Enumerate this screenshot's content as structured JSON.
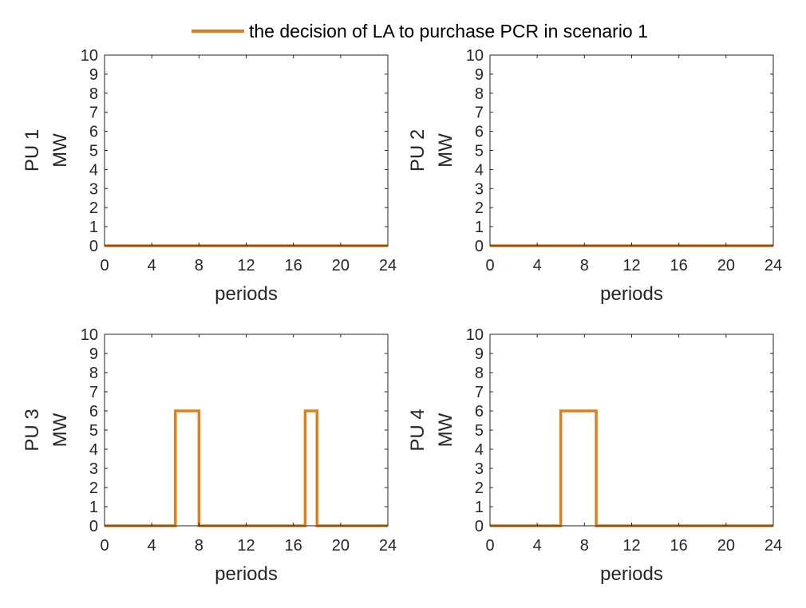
{
  "legend": {
    "label": "the decision of LA to purchase PCR in scenario 1",
    "color": "#E0801A"
  },
  "chart_data": [
    {
      "type": "line",
      "step": true,
      "ylabel_1": "PU 1",
      "ylabel_2": "MW",
      "xlabel": "periods",
      "xlim": [
        0,
        24
      ],
      "ylim": [
        0,
        10
      ],
      "xticks": [
        "0",
        "4",
        "8",
        "12",
        "16",
        "20",
        "24"
      ],
      "yticks": [
        "0",
        "1",
        "2",
        "3",
        "4",
        "5",
        "6",
        "7",
        "8",
        "9",
        "10"
      ],
      "series": [
        {
          "name": "the decision of LA to purchase PCR in scenario 1",
          "x": [
            0,
            24
          ],
          "y": [
            0,
            0
          ]
        }
      ]
    },
    {
      "type": "line",
      "step": true,
      "ylabel_1": "PU 2",
      "ylabel_2": "MW",
      "xlabel": "periods",
      "xlim": [
        0,
        24
      ],
      "ylim": [
        0,
        10
      ],
      "xticks": [
        "0",
        "4",
        "8",
        "12",
        "16",
        "20",
        "24"
      ],
      "yticks": [
        "0",
        "1",
        "2",
        "3",
        "4",
        "5",
        "6",
        "7",
        "8",
        "9",
        "10"
      ],
      "series": [
        {
          "name": "the decision of LA to purchase PCR in scenario 1",
          "x": [
            0,
            24
          ],
          "y": [
            0,
            0
          ]
        }
      ]
    },
    {
      "type": "line",
      "step": true,
      "ylabel_1": "PU 3",
      "ylabel_2": "MW",
      "xlabel": "periods",
      "xlim": [
        0,
        24
      ],
      "ylim": [
        0,
        10
      ],
      "xticks": [
        "0",
        "4",
        "8",
        "12",
        "16",
        "20",
        "24"
      ],
      "yticks": [
        "0",
        "1",
        "2",
        "3",
        "4",
        "5",
        "6",
        "7",
        "8",
        "9",
        "10"
      ],
      "series": [
        {
          "name": "the decision of LA to purchase PCR in scenario 1",
          "x": [
            0,
            6,
            6,
            8,
            8,
            17,
            17,
            18,
            18,
            24
          ],
          "y": [
            0,
            0,
            6,
            6,
            0,
            0,
            6,
            6,
            0,
            0
          ]
        }
      ]
    },
    {
      "type": "line",
      "step": true,
      "ylabel_1": "PU 4",
      "ylabel_2": "MW",
      "xlabel": "periods",
      "xlim": [
        0,
        24
      ],
      "ylim": [
        0,
        10
      ],
      "xticks": [
        "0",
        "4",
        "8",
        "12",
        "16",
        "20",
        "24"
      ],
      "yticks": [
        "0",
        "1",
        "2",
        "3",
        "4",
        "5",
        "6",
        "7",
        "8",
        "9",
        "10"
      ],
      "series": [
        {
          "name": "the decision of LA to purchase PCR in scenario 1",
          "x": [
            0,
            6,
            6,
            9,
            9,
            24
          ],
          "y": [
            0,
            0,
            6,
            6,
            0,
            0
          ]
        }
      ]
    }
  ]
}
